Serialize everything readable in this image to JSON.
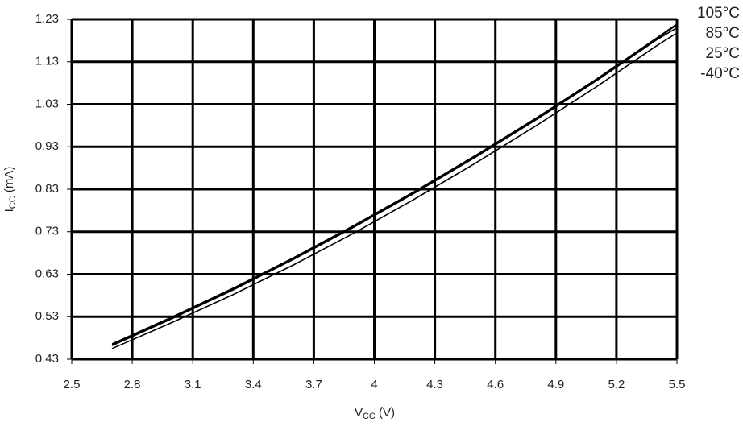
{
  "chart_data": {
    "type": "line",
    "x_label": {
      "main": "V",
      "sub": "CC",
      "rest": " (V)"
    },
    "y_label": {
      "main": "I",
      "sub": "CC",
      "rest": " (mA)"
    },
    "x": [
      2.7,
      3.0,
      3.3,
      3.6,
      3.9,
      4.2,
      4.5,
      4.8,
      5.1,
      5.4,
      5.5
    ],
    "series": [
      {
        "name": "105°C",
        "color": "#000000",
        "values": [
          0.466,
          0.53,
          0.597,
          0.669,
          0.745,
          0.825,
          0.909,
          0.997,
          1.089,
          1.186,
          1.219
        ]
      },
      {
        "name": "85°C",
        "color": "#000000",
        "values": [
          0.464,
          0.528,
          0.595,
          0.667,
          0.743,
          0.823,
          0.907,
          0.995,
          1.087,
          1.184,
          1.217
        ]
      },
      {
        "name": "25°C",
        "color": "#000000",
        "values": [
          0.462,
          0.526,
          0.593,
          0.665,
          0.741,
          0.821,
          0.905,
          0.993,
          1.085,
          1.182,
          1.21
        ]
      },
      {
        "name": "-40°C",
        "color": "#000000",
        "values": [
          0.455,
          0.517,
          0.582,
          0.652,
          0.727,
          0.807,
          0.891,
          0.979,
          1.071,
          1.168,
          1.198
        ]
      }
    ],
    "xlim": [
      2.5,
      5.5
    ],
    "xticks": [
      2.5,
      2.8,
      3.1,
      3.4,
      3.7,
      4,
      4.3,
      4.6,
      4.9,
      5.2,
      5.5
    ],
    "ylim": [
      0.43,
      1.23
    ],
    "yticks": [
      0.43,
      0.53,
      0.63,
      0.73,
      0.83,
      0.93,
      1.03,
      1.13,
      1.23
    ],
    "grid": true,
    "legend": "top-right"
  }
}
